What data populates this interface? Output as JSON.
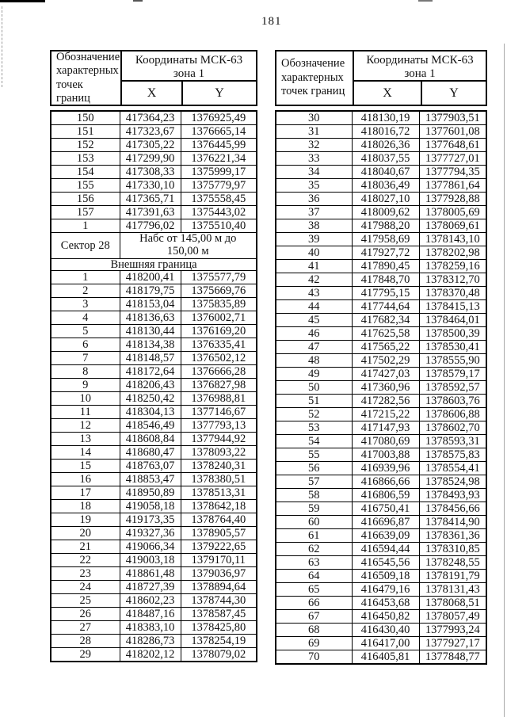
{
  "colors": {
    "paper": "#ffffff",
    "ink": "#111111"
  },
  "page_number": "181",
  "table_header": {
    "designation": "Обозначение\nхарактерных\nточек границ",
    "coords_title": "Координаты МСК-63\nзона 1",
    "x_label": "X",
    "y_label": "Y"
  },
  "left_table": {
    "rows_top": [
      [
        "150",
        "417364,23",
        "1376925,49"
      ],
      [
        "151",
        "417323,67",
        "1376665,14"
      ],
      [
        "152",
        "417305,22",
        "1376445,99"
      ],
      [
        "153",
        "417299,90",
        "1376221,34"
      ],
      [
        "154",
        "417308,33",
        "1375999,17"
      ],
      [
        "155",
        "417330,10",
        "1375779,97"
      ],
      [
        "156",
        "417365,71",
        "1375558,45"
      ],
      [
        "157",
        "417391,63",
        "1375443,02"
      ],
      [
        "1",
        "417796,02",
        "1375510,40"
      ]
    ],
    "sector_label": "Сектор 28",
    "sector_value": "Набс от 145,00 м до\n150,00 м",
    "section_label": "Внешняя граница",
    "rows_bottom": [
      [
        "1",
        "418200,41",
        "1375577,79"
      ],
      [
        "2",
        "418179,75",
        "1375669,76"
      ],
      [
        "3",
        "418153,04",
        "1375835,89"
      ],
      [
        "4",
        "418136,63",
        "1376002,71"
      ],
      [
        "5",
        "418130,44",
        "1376169,20"
      ],
      [
        "6",
        "418134,38",
        "1376335,41"
      ],
      [
        "7",
        "418148,57",
        "1376502,12"
      ],
      [
        "8",
        "418172,64",
        "1376666,28"
      ],
      [
        "9",
        "418206,43",
        "1376827,98"
      ],
      [
        "10",
        "418250,42",
        "1376988,81"
      ],
      [
        "11",
        "418304,13",
        "1377146,67"
      ],
      [
        "12",
        "418546,49",
        "1377793,13"
      ],
      [
        "13",
        "418608,84",
        "1377944,92"
      ],
      [
        "14",
        "418680,47",
        "1378093,22"
      ],
      [
        "15",
        "418763,07",
        "1378240,31"
      ],
      [
        "16",
        "418853,47",
        "1378380,51"
      ],
      [
        "17",
        "418950,89",
        "1378513,31"
      ],
      [
        "18",
        "419058,18",
        "1378642,18"
      ],
      [
        "19",
        "419173,35",
        "1378764,40"
      ],
      [
        "20",
        "419327,36",
        "1378905,57"
      ],
      [
        "21",
        "419066,34",
        "1379222,65"
      ],
      [
        "22",
        "419003,18",
        "1379170,11"
      ],
      [
        "23",
        "418861,48",
        "1379036,97"
      ],
      [
        "24",
        "418727,39",
        "1378894,64"
      ],
      [
        "25",
        "418602,23",
        "1378744,30"
      ],
      [
        "26",
        "418487,16",
        "1378587,45"
      ],
      [
        "27",
        "418383,10",
        "1378425,80"
      ],
      [
        "28",
        "418286,73",
        "1378254,19"
      ],
      [
        "29",
        "418202,12",
        "1378079,02"
      ]
    ]
  },
  "right_table": {
    "rows": [
      [
        "30",
        "418130,19",
        "1377903,51"
      ],
      [
        "31",
        "418016,72",
        "1377601,08"
      ],
      [
        "32",
        "418026,36",
        "1377648,61"
      ],
      [
        "33",
        "418037,55",
        "1377727,01"
      ],
      [
        "34",
        "418040,67",
        "1377794,35"
      ],
      [
        "35",
        "418036,49",
        "1377861,64"
      ],
      [
        "36",
        "418027,10",
        "1377928,88"
      ],
      [
        "37",
        "418009,62",
        "1378005,69"
      ],
      [
        "38",
        "417988,20",
        "1378069,61"
      ],
      [
        "39",
        "417958,69",
        "1378143,10"
      ],
      [
        "40",
        "417927,72",
        "1378202,98"
      ],
      [
        "41",
        "417890,45",
        "1378259,16"
      ],
      [
        "42",
        "417848,70",
        "1378312,70"
      ],
      [
        "43",
        "417795,15",
        "1378370,48"
      ],
      [
        "44",
        "417744,64",
        "1378415,13"
      ],
      [
        "45",
        "417682,34",
        "1378464,01"
      ],
      [
        "46",
        "417625,58",
        "1378500,39"
      ],
      [
        "47",
        "417565,22",
        "1378530,41"
      ],
      [
        "48",
        "417502,29",
        "1378555,90"
      ],
      [
        "49",
        "417427,03",
        "1378579,17"
      ],
      [
        "50",
        "417360,96",
        "1378592,57"
      ],
      [
        "51",
        "417282,56",
        "1378603,76"
      ],
      [
        "52",
        "417215,22",
        "1378606,88"
      ],
      [
        "53",
        "417147,93",
        "1378602,70"
      ],
      [
        "54",
        "417080,69",
        "1378593,31"
      ],
      [
        "55",
        "417003,88",
        "1378575,83"
      ],
      [
        "56",
        "416939,96",
        "1378554,41"
      ],
      [
        "57",
        "416866,66",
        "1378524,98"
      ],
      [
        "58",
        "416806,59",
        "1378493,93"
      ],
      [
        "59",
        "416750,41",
        "1378456,66"
      ],
      [
        "60",
        "416696,87",
        "1378414,90"
      ],
      [
        "61",
        "416639,09",
        "1378361,36"
      ],
      [
        "62",
        "416594,44",
        "1378310,85"
      ],
      [
        "63",
        "416545,56",
        "1378248,55"
      ],
      [
        "64",
        "416509,18",
        "1378191,79"
      ],
      [
        "65",
        "416479,16",
        "1378131,43"
      ],
      [
        "66",
        "416453,68",
        "1378068,51"
      ],
      [
        "67",
        "416450,82",
        "1378057,49"
      ],
      [
        "68",
        "416430,40",
        "1377993,24"
      ],
      [
        "69",
        "416417,00",
        "1377927,17"
      ],
      [
        "70",
        "416405,81",
        "1377848,77"
      ]
    ]
  }
}
